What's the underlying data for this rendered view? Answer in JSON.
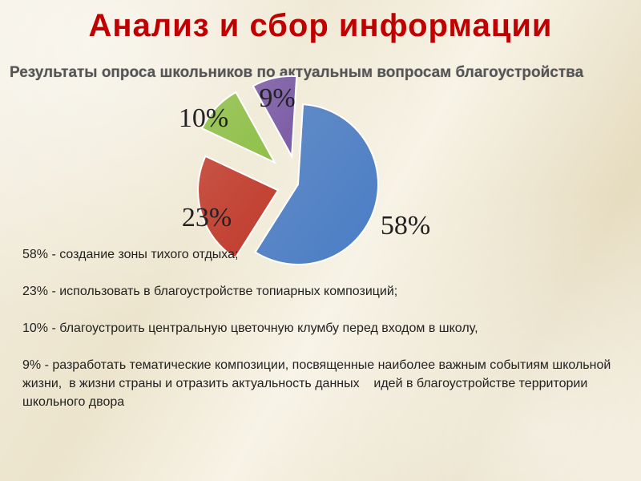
{
  "slide": {
    "title": "Анализ и сбор информации"
  },
  "chart_data": {
    "type": "pie",
    "title": "Результаты опроса школьников по актуальным вопросам благоустройства",
    "slices": [
      {
        "value": 58,
        "label": "58%",
        "color": "#4a7cc4"
      },
      {
        "value": 23,
        "label": "23%",
        "color": "#c0392b"
      },
      {
        "value": 10,
        "label": "10%",
        "color": "#8fc04a"
      },
      {
        "value": 9,
        "label": "9%",
        "color": "#7a5aa6"
      }
    ]
  },
  "legend": {
    "items": [
      "58% - создание зоны тихого отдыха;",
      "23% - использовать в благоустройстве топиарных композиций;",
      "10% - благоустроить центральную цветочную клумбу перед входом в школу,",
      "9% - разработать тематические композиции, посвященные наиболее важным событиям школьной жизни,  в жизни страны и отразить актуальность данных    идей в благоустройстве территории школьного двора"
    ]
  }
}
